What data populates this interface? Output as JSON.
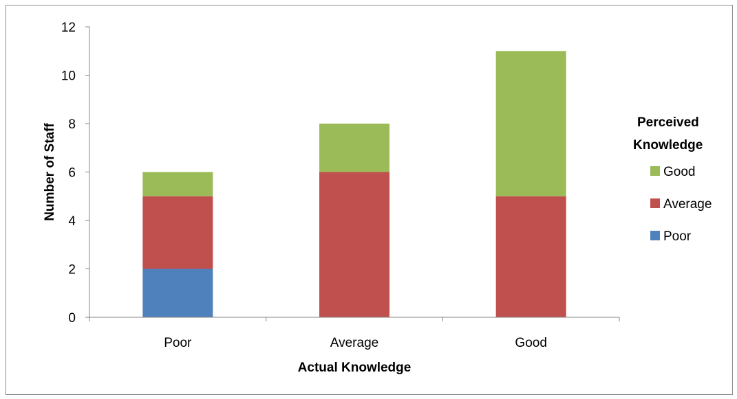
{
  "chart_data": {
    "type": "bar",
    "stacked": true,
    "title": "",
    "xlabel": "Actual Knowledge",
    "ylabel": "Number of Staff",
    "categories": [
      "Poor",
      "Average",
      "Good"
    ],
    "series": [
      {
        "name": "Poor",
        "values": [
          2,
          0,
          0
        ],
        "color": "#4f81bd"
      },
      {
        "name": "Average",
        "values": [
          3,
          6,
          5
        ],
        "color": "#c0504d"
      },
      {
        "name": "Good",
        "values": [
          1,
          2,
          6
        ],
        "color": "#9bbb59"
      }
    ],
    "ylim": [
      0,
      12
    ],
    "yticks": [
      0,
      2,
      4,
      6,
      8,
      10,
      12
    ],
    "grid": false,
    "legend": {
      "title_line1": "Perceived",
      "title_line2": "Knowledge",
      "position": "right",
      "order": [
        "Good",
        "Average",
        "Poor"
      ]
    }
  }
}
